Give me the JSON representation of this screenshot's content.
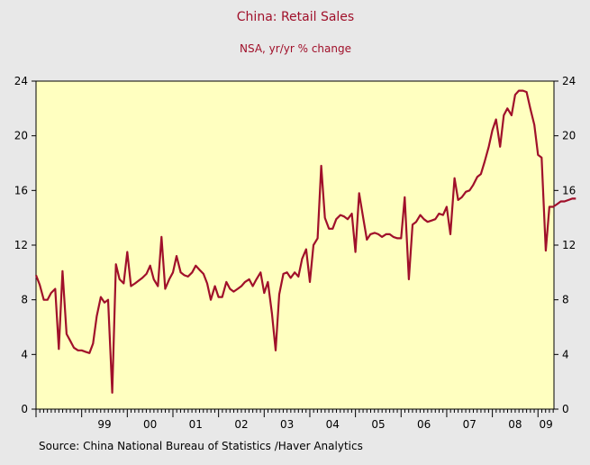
{
  "chart_data": {
    "type": "line",
    "title": "China: Retail Sales",
    "subtitle": "NSA, yr/yr % change",
    "source": "Source:  China National Bureau of Statistics /Haver Analytics",
    "ylim": [
      0,
      24
    ],
    "y_ticks": [
      "0",
      "4",
      "8",
      "12",
      "16",
      "20",
      "24"
    ],
    "x_tick_labels": [
      "99",
      "00",
      "01",
      "02",
      "03",
      "04",
      "05",
      "06",
      "07",
      "08",
      "09"
    ],
    "x_range": [
      1998.0,
      2009.35
    ],
    "grid": false,
    "colors": {
      "line": "#a0102a",
      "title": "#a0102a",
      "plot_background": "#ffffc0",
      "page_background": "#e8e8e8"
    },
    "series": [
      {
        "values": [
          [
            1998.0,
            9.8
          ],
          [
            1998.08,
            9.1
          ],
          [
            1998.17,
            8.0
          ],
          [
            1998.25,
            8.0
          ],
          [
            1998.33,
            8.5
          ],
          [
            1998.42,
            8.8
          ],
          [
            1998.5,
            4.4
          ],
          [
            1998.58,
            10.1
          ],
          [
            1998.67,
            5.5
          ],
          [
            1998.75,
            5.0
          ],
          [
            1998.83,
            4.5
          ],
          [
            1998.92,
            4.3
          ],
          [
            1999.0,
            4.3
          ],
          [
            1999.08,
            4.2
          ],
          [
            1999.17,
            4.1
          ],
          [
            1999.25,
            4.8
          ],
          [
            1999.33,
            6.8
          ],
          [
            1999.42,
            8.2
          ],
          [
            1999.5,
            7.8
          ],
          [
            1999.58,
            8.0
          ],
          [
            1999.67,
            1.2
          ],
          [
            1999.75,
            10.6
          ],
          [
            1999.83,
            9.5
          ],
          [
            1999.92,
            9.2
          ],
          [
            2000.0,
            11.5
          ],
          [
            2000.08,
            9.0
          ],
          [
            2000.17,
            9.2
          ],
          [
            2000.25,
            9.4
          ],
          [
            2000.33,
            9.6
          ],
          [
            2000.42,
            9.9
          ],
          [
            2000.5,
            10.5
          ],
          [
            2000.58,
            9.5
          ],
          [
            2000.67,
            9.0
          ],
          [
            2000.75,
            12.6
          ],
          [
            2000.83,
            8.8
          ],
          [
            2000.92,
            9.5
          ],
          [
            2001.0,
            10.0
          ],
          [
            2001.08,
            11.2
          ],
          [
            2001.17,
            10.0
          ],
          [
            2001.25,
            9.8
          ],
          [
            2001.33,
            9.7
          ],
          [
            2001.42,
            10.0
          ],
          [
            2001.5,
            10.5
          ],
          [
            2001.58,
            10.2
          ],
          [
            2001.67,
            9.9
          ],
          [
            2001.75,
            9.2
          ],
          [
            2001.83,
            8.0
          ],
          [
            2001.92,
            9.0
          ],
          [
            2002.0,
            8.2
          ],
          [
            2002.08,
            8.2
          ],
          [
            2002.17,
            9.3
          ],
          [
            2002.25,
            8.8
          ],
          [
            2002.33,
            8.6
          ],
          [
            2002.42,
            8.8
          ],
          [
            2002.5,
            9.0
          ],
          [
            2002.58,
            9.3
          ],
          [
            2002.67,
            9.5
          ],
          [
            2002.75,
            9.0
          ],
          [
            2002.83,
            9.5
          ],
          [
            2002.92,
            10.0
          ],
          [
            2003.0,
            8.5
          ],
          [
            2003.08,
            9.3
          ],
          [
            2003.17,
            7.0
          ],
          [
            2003.25,
            4.3
          ],
          [
            2003.33,
            8.4
          ],
          [
            2003.42,
            9.9
          ],
          [
            2003.5,
            10.0
          ],
          [
            2003.58,
            9.6
          ],
          [
            2003.67,
            10.0
          ],
          [
            2003.75,
            9.7
          ],
          [
            2003.83,
            11.0
          ],
          [
            2003.92,
            11.7
          ],
          [
            2004.0,
            9.3
          ],
          [
            2004.08,
            12.0
          ],
          [
            2004.17,
            12.5
          ],
          [
            2004.25,
            17.8
          ],
          [
            2004.33,
            14.0
          ],
          [
            2004.42,
            13.2
          ],
          [
            2004.5,
            13.2
          ],
          [
            2004.58,
            13.9
          ],
          [
            2004.67,
            14.2
          ],
          [
            2004.75,
            14.1
          ],
          [
            2004.83,
            13.9
          ],
          [
            2004.92,
            14.3
          ],
          [
            2005.0,
            11.5
          ],
          [
            2005.08,
            15.8
          ],
          [
            2005.17,
            14.0
          ],
          [
            2005.25,
            12.4
          ],
          [
            2005.33,
            12.8
          ],
          [
            2005.42,
            12.9
          ],
          [
            2005.5,
            12.8
          ],
          [
            2005.58,
            12.6
          ],
          [
            2005.67,
            12.8
          ],
          [
            2005.75,
            12.8
          ],
          [
            2005.83,
            12.6
          ],
          [
            2005.92,
            12.5
          ],
          [
            2006.0,
            12.5
          ],
          [
            2006.08,
            15.5
          ],
          [
            2006.17,
            9.5
          ],
          [
            2006.25,
            13.5
          ],
          [
            2006.33,
            13.7
          ],
          [
            2006.42,
            14.2
          ],
          [
            2006.5,
            13.9
          ],
          [
            2006.58,
            13.7
          ],
          [
            2006.67,
            13.8
          ],
          [
            2006.75,
            13.9
          ],
          [
            2006.83,
            14.3
          ],
          [
            2006.92,
            14.2
          ],
          [
            2007.0,
            14.8
          ],
          [
            2007.08,
            12.8
          ],
          [
            2007.17,
            16.9
          ],
          [
            2007.25,
            15.3
          ],
          [
            2007.33,
            15.5
          ],
          [
            2007.42,
            15.9
          ],
          [
            2007.5,
            16.0
          ],
          [
            2007.58,
            16.4
          ],
          [
            2007.67,
            17.0
          ],
          [
            2007.75,
            17.2
          ],
          [
            2007.83,
            18.1
          ],
          [
            2007.92,
            19.2
          ],
          [
            2008.0,
            20.4
          ],
          [
            2008.08,
            21.2
          ],
          [
            2008.17,
            19.2
          ],
          [
            2008.25,
            21.5
          ],
          [
            2008.33,
            22.0
          ],
          [
            2008.42,
            21.5
          ],
          [
            2008.5,
            23.0
          ],
          [
            2008.58,
            23.3
          ],
          [
            2008.67,
            23.3
          ],
          [
            2008.75,
            23.2
          ],
          [
            2008.83,
            22.0
          ],
          [
            2008.92,
            20.8
          ],
          [
            2009.0,
            18.6
          ],
          [
            2009.08,
            18.4
          ],
          [
            2009.17,
            11.6
          ],
          [
            2009.25,
            14.8
          ],
          [
            2009.33,
            14.8
          ],
          [
            2009.42,
            15.0
          ],
          [
            2009.5,
            15.2
          ],
          [
            2009.58,
            15.2
          ],
          [
            2009.67,
            15.3
          ],
          [
            2009.75,
            15.4
          ],
          [
            2009.83,
            15.4
          ]
        ]
      }
    ]
  }
}
